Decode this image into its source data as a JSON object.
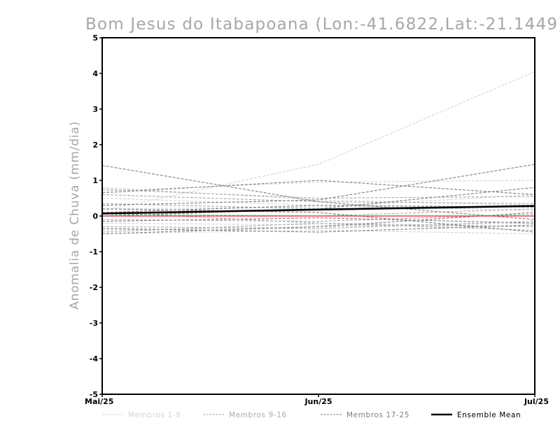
{
  "chart_data": {
    "type": "line",
    "title": "Bom Jesus do Itabapoana (Lon:-41.6822,Lat:-21.1449)",
    "xlabel": "",
    "ylabel": "Anomalia de Chuva (mm/dia)",
    "categories": [
      "Mai/25",
      "Jun/25",
      "Jul/25"
    ],
    "ylim": [
      -5,
      5
    ],
    "yticks": [
      "5",
      "4",
      "3",
      "2",
      "1",
      "0",
      "-1",
      "-2",
      "-3",
      "-4",
      "-5"
    ],
    "zero_line_color": "#e8474b",
    "groups": [
      {
        "name": "Membros 1-8",
        "color": "#d4d4d4",
        "series": [
          [
            0.15,
            1.45,
            4.05
          ],
          [
            0.8,
            0.45,
            0.3
          ],
          [
            0.7,
            0.95,
            1.0
          ],
          [
            0.5,
            0.3,
            0.15
          ],
          [
            -0.2,
            -0.25,
            -0.3
          ],
          [
            -0.4,
            -0.3,
            -0.2
          ],
          [
            -0.5,
            -0.4,
            -0.5
          ],
          [
            0.2,
            0.25,
            0.6
          ]
        ]
      },
      {
        "name": "Membros 9-16",
        "color": "#ababab",
        "series": [
          [
            0.75,
            0.5,
            0.55
          ],
          [
            0.35,
            0.2,
            0.3
          ],
          [
            0.1,
            -0.2,
            -0.3
          ],
          [
            -0.1,
            -0.15,
            0.05
          ],
          [
            -0.3,
            -0.35,
            -0.15
          ],
          [
            -0.45,
            -0.2,
            -0.4
          ],
          [
            0.05,
            0.0,
            0.2
          ],
          [
            0.6,
            0.4,
            0.35
          ]
        ]
      },
      {
        "name": "Membros 17-25",
        "color": "#808080",
        "series": [
          [
            1.42,
            0.4,
            -0.1
          ],
          [
            0.65,
            1.0,
            0.6
          ],
          [
            0.3,
            0.45,
            1.45
          ],
          [
            0.0,
            0.2,
            0.8
          ],
          [
            -0.35,
            -0.45,
            -0.25
          ],
          [
            -0.15,
            -0.05,
            -0.2
          ],
          [
            0.2,
            0.1,
            -0.45
          ],
          [
            -0.5,
            -0.3,
            0.1
          ],
          [
            0.1,
            0.3,
            0.25
          ]
        ]
      },
      {
        "name": "Ensemble Mean",
        "color": "#000000",
        "series": [
          [
            0.07,
            0.18,
            0.28
          ]
        ]
      }
    ]
  }
}
